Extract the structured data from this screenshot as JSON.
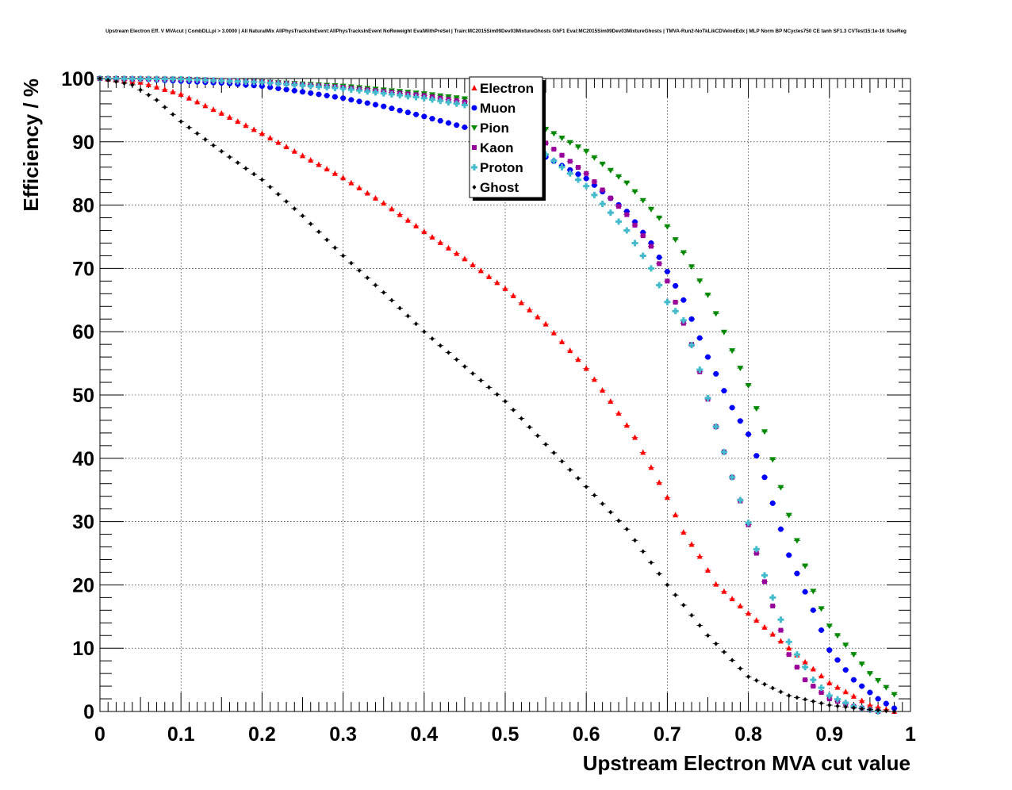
{
  "chart_data": {
    "type": "scatter",
    "title": "Upstream Electron Eff. V MVAcut | CombDLLpi > 3.0000 | All NaturalMix AllPhysTracksInEvent:AllPhysTracksInEvent NoReweight EvalWithPreSel | Train:MC2015Sim09Dev03MixtureGhosts GhF1 Eval:MC2015Sim09Dev03MixtureGhosts | TMVA-Run2-NoTkLikCDVelodEdx | MLP Norm BP NCycles750 CE tanh SF1.3 CVTest15:1e-16 !UseReg",
    "xlabel": "Upstream Electron MVA cut value",
    "ylabel": "Efficiency / %",
    "xlim": [
      0,
      1
    ],
    "ylim": [
      0,
      100
    ],
    "x_ticks": [
      "0",
      "0.1",
      "0.2",
      "0.3",
      "0.4",
      "0.5",
      "0.6",
      "0.7",
      "0.8",
      "0.9",
      "1"
    ],
    "y_ticks": [
      "0",
      "10",
      "20",
      "30",
      "40",
      "50",
      "60",
      "70",
      "80",
      "90",
      "100"
    ],
    "grid": true,
    "legend_position": "top-center",
    "series": [
      {
        "name": "Electron",
        "color": "#ff0000",
        "marker": "triangle-up",
        "x": [
          0,
          0.05,
          0.1,
          0.15,
          0.2,
          0.25,
          0.3,
          0.35,
          0.4,
          0.45,
          0.5,
          0.55,
          0.6,
          0.63,
          0.66,
          0.7,
          0.72,
          0.74,
          0.76,
          0.8,
          0.85,
          0.9,
          0.95,
          0.98
        ],
        "y": [
          100,
          99.4,
          97.5,
          94.5,
          91.3,
          87.8,
          84.3,
          80.3,
          75.8,
          71.5,
          66.8,
          61.2,
          54.2,
          49.0,
          43.3,
          33.8,
          28.3,
          24.5,
          20.1,
          15.5,
          10.0,
          4.5,
          1.0,
          0
        ]
      },
      {
        "name": "Muon",
        "color": "#0000ff",
        "marker": "circle",
        "x": [
          0,
          0.05,
          0.1,
          0.15,
          0.2,
          0.25,
          0.3,
          0.35,
          0.4,
          0.45,
          0.5,
          0.55,
          0.6,
          0.65,
          0.68,
          0.7,
          0.72,
          0.75,
          0.78,
          0.8,
          0.82,
          0.85,
          0.88,
          0.9,
          0.93,
          0.96,
          0.98
        ],
        "y": [
          100,
          99.9,
          99.6,
          99.3,
          98.8,
          97.9,
          96.9,
          95.6,
          94.0,
          92.3,
          90.4,
          87.6,
          84.2,
          79.0,
          74.0,
          69.5,
          65.0,
          56.0,
          48.0,
          43.8,
          37.0,
          24.7,
          16.0,
          9.7,
          5.0,
          2.0,
          0.5
        ]
      },
      {
        "name": "Pion",
        "color": "#008800",
        "marker": "triangle-down",
        "x": [
          0,
          0.1,
          0.2,
          0.3,
          0.4,
          0.45,
          0.5,
          0.55,
          0.6,
          0.65,
          0.7,
          0.72,
          0.75,
          0.78,
          0.8,
          0.82,
          0.85,
          0.88,
          0.9,
          0.93,
          0.95,
          0.98
        ],
        "y": [
          100,
          99.9,
          99.5,
          98.8,
          97.6,
          96.8,
          95.0,
          92.0,
          88.5,
          83.5,
          76.6,
          72.5,
          65.8,
          57.0,
          51.5,
          44.2,
          31.0,
          19.0,
          13.5,
          9.0,
          6.0,
          2.7
        ]
      },
      {
        "name": "Kaon",
        "color": "#990099",
        "marker": "square",
        "x": [
          0,
          0.1,
          0.2,
          0.3,
          0.4,
          0.45,
          0.5,
          0.55,
          0.6,
          0.65,
          0.68,
          0.7,
          0.73,
          0.76,
          0.78,
          0.8,
          0.82,
          0.85,
          0.87,
          0.9,
          0.93,
          0.96
        ],
        "y": [
          100,
          99.9,
          99.5,
          98.6,
          97.3,
          96.3,
          94.5,
          89.8,
          85.0,
          78.5,
          73.5,
          68.0,
          58.0,
          45.0,
          37.0,
          29.5,
          20.5,
          9.0,
          5.0,
          2.0,
          0.8,
          0
        ]
      },
      {
        "name": "Proton",
        "color": "#44bbcc",
        "marker": "cross",
        "x": [
          0,
          0.1,
          0.2,
          0.3,
          0.4,
          0.45,
          0.5,
          0.55,
          0.6,
          0.65,
          0.68,
          0.7,
          0.72,
          0.74,
          0.76,
          0.78,
          0.8,
          0.82,
          0.85,
          0.88,
          0.9,
          0.93,
          0.96
        ],
        "y": [
          100,
          99.9,
          99.4,
          98.4,
          96.9,
          95.8,
          93.5,
          88.0,
          83.0,
          76.0,
          70.0,
          64.7,
          61.8,
          54.0,
          45.0,
          37.0,
          29.8,
          21.5,
          11.0,
          5.0,
          2.5,
          0.8,
          0
        ]
      },
      {
        "name": "Ghost",
        "color": "#000000",
        "marker": "diamond",
        "x": [
          0,
          0.04,
          0.07,
          0.1,
          0.15,
          0.2,
          0.25,
          0.3,
          0.35,
          0.4,
          0.45,
          0.5,
          0.55,
          0.6,
          0.65,
          0.7,
          0.75,
          0.8,
          0.85,
          0.9,
          0.95,
          0.98
        ],
        "y": [
          100,
          99.0,
          96.6,
          93.2,
          88.5,
          84.0,
          78.3,
          72.0,
          66.2,
          60.0,
          54.5,
          49.0,
          42.2,
          35.5,
          28.8,
          20.0,
          12.0,
          5.5,
          2.5,
          1.0,
          0.3,
          0
        ]
      }
    ]
  }
}
